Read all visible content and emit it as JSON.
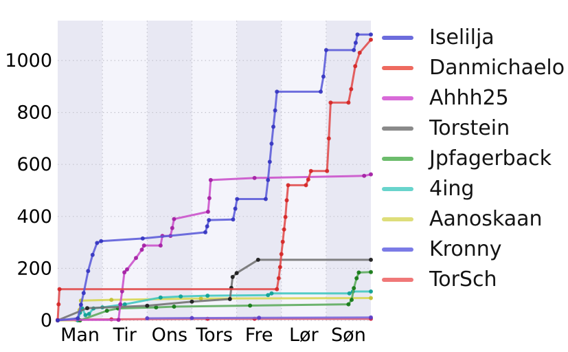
{
  "chart_data": {
    "type": "line",
    "title": "",
    "xlabel": "",
    "ylabel": "",
    "x_tick_labels": [
      "Man",
      "Tir",
      "Ons",
      "Tors",
      "Fre",
      "Lør",
      "Søn"
    ],
    "y_ticks": [
      0,
      200,
      400,
      600,
      800,
      1000
    ],
    "x_range_days": [
      0,
      7
    ],
    "y_range": [
      0,
      1153
    ],
    "grid": "dotted",
    "grid_color": "#c3c3cd",
    "band_color_dark": "#e8e8f3",
    "band_color_light": "#f4f4fb",
    "legend_position": "right-outside",
    "series": [
      {
        "name": "Iselilja",
        "line_color": "#5a5ad8",
        "marker_color": "#3434c0",
        "legend_color": "#6c6cdc",
        "points": [
          [
            0,
            0
          ],
          [
            0.45,
            8
          ],
          [
            0.52,
            60
          ],
          [
            0.58,
            105
          ],
          [
            0.68,
            190
          ],
          [
            0.78,
            252
          ],
          [
            0.88,
            298
          ],
          [
            0.97,
            305
          ],
          [
            1.9,
            315
          ],
          [
            3.3,
            339
          ],
          [
            3.34,
            362
          ],
          [
            3.38,
            386
          ],
          [
            3.92,
            388
          ],
          [
            3.97,
            430
          ],
          [
            4.01,
            467
          ],
          [
            4.65,
            467
          ],
          [
            4.7,
            540
          ],
          [
            4.74,
            610
          ],
          [
            4.78,
            680
          ],
          [
            4.82,
            745
          ],
          [
            4.86,
            808
          ],
          [
            4.9,
            880
          ],
          [
            5.88,
            880
          ],
          [
            5.94,
            938
          ],
          [
            6.0,
            1040
          ],
          [
            6.62,
            1040
          ],
          [
            6.66,
            1068
          ],
          [
            6.7,
            1100
          ],
          [
            7,
            1100
          ]
        ]
      },
      {
        "name": "Danmichaelo",
        "line_color": "#e04a4a",
        "marker_color": "#d42626",
        "legend_color": "#ee6a5f",
        "points": [
          [
            0,
            0
          ],
          [
            0.02,
            62
          ],
          [
            0.04,
            120
          ],
          [
            4.9,
            120
          ],
          [
            4.94,
            162
          ],
          [
            4.97,
            205
          ],
          [
            5.0,
            255
          ],
          [
            5.03,
            302
          ],
          [
            5.06,
            350
          ],
          [
            5.09,
            398
          ],
          [
            5.12,
            462
          ],
          [
            5.15,
            520
          ],
          [
            5.55,
            520
          ],
          [
            5.6,
            542
          ],
          [
            5.66,
            575
          ],
          [
            6.02,
            575
          ],
          [
            6.06,
            700
          ],
          [
            6.1,
            838
          ],
          [
            6.5,
            838
          ],
          [
            6.56,
            890
          ],
          [
            6.65,
            978
          ],
          [
            6.75,
            1030
          ],
          [
            7,
            1080
          ]
        ]
      },
      {
        "name": "Ahhh25",
        "line_color": "#c94fc9",
        "marker_color": "#a21ea2",
        "legend_color": "#d86ad8",
        "points": [
          [
            0,
            2
          ],
          [
            1.36,
            2
          ],
          [
            1.4,
            62
          ],
          [
            1.44,
            112
          ],
          [
            1.49,
            185
          ],
          [
            1.55,
            196
          ],
          [
            1.75,
            240
          ],
          [
            1.88,
            272
          ],
          [
            1.93,
            288
          ],
          [
            2.3,
            288
          ],
          [
            2.34,
            325
          ],
          [
            2.52,
            325
          ],
          [
            2.56,
            355
          ],
          [
            2.6,
            390
          ],
          [
            3.36,
            418
          ],
          [
            3.39,
            470
          ],
          [
            3.42,
            540
          ],
          [
            4.4,
            548
          ],
          [
            6.85,
            556
          ],
          [
            7,
            562
          ]
        ]
      },
      {
        "name": "Torstein",
        "line_color": "#6f6f6f",
        "marker_color": "#1a1a1a",
        "legend_color": "#8a8a8a",
        "points": [
          [
            0,
            0
          ],
          [
            0.66,
            47
          ],
          [
            2.0,
            56
          ],
          [
            3.0,
            72
          ],
          [
            3.85,
            82
          ],
          [
            3.88,
            125
          ],
          [
            3.91,
            167
          ],
          [
            4.0,
            182
          ],
          [
            4.48,
            233
          ],
          [
            7,
            233
          ]
        ]
      },
      {
        "name": "Jpfagerback",
        "line_color": "#5aaa5a",
        "marker_color": "#147814",
        "legend_color": "#6cbc6c",
        "points": [
          [
            0.5,
            0
          ],
          [
            1.1,
            37
          ],
          [
            1.35,
            46
          ],
          [
            2.2,
            50
          ],
          [
            2.6,
            53
          ],
          [
            4.3,
            57
          ],
          [
            6.5,
            62
          ],
          [
            6.57,
            79
          ],
          [
            6.62,
            124
          ],
          [
            6.68,
            162
          ],
          [
            6.73,
            184
          ],
          [
            7,
            186
          ]
        ]
      },
      {
        "name": "4ing",
        "line_color": "#3ec6be",
        "marker_color": "#0b9e92",
        "legend_color": "#68d4cc",
        "points": [
          [
            0.45,
            0
          ],
          [
            0.5,
            30
          ],
          [
            0.55,
            46
          ],
          [
            0.62,
            20
          ],
          [
            0.7,
            25
          ],
          [
            0.8,
            46
          ],
          [
            1.0,
            50
          ],
          [
            1.5,
            62
          ],
          [
            2.3,
            88
          ],
          [
            2.75,
            92
          ],
          [
            3.35,
            95
          ],
          [
            4.7,
            97
          ],
          [
            4.78,
            104
          ],
          [
            6.52,
            104
          ],
          [
            6.6,
            111
          ],
          [
            7,
            111
          ]
        ]
      },
      {
        "name": "Aanoskaan",
        "line_color": "#d6d650",
        "marker_color": "#c0c030",
        "legend_color": "#dede7a",
        "points": [
          [
            0,
            0
          ],
          [
            0.46,
            0
          ],
          [
            0.49,
            40
          ],
          [
            0.52,
            76
          ],
          [
            1.2,
            79
          ],
          [
            3.2,
            84
          ],
          [
            7,
            86
          ]
        ]
      },
      {
        "name": "Kronny",
        "line_color": "#7a68dc",
        "marker_color": "#5a3cc8",
        "legend_color": "#7b7be6",
        "points": [
          [
            2.0,
            8
          ],
          [
            3.0,
            9
          ],
          [
            4.5,
            10
          ],
          [
            7,
            11
          ]
        ]
      },
      {
        "name": "TorSch",
        "line_color": "#e0566a",
        "marker_color": "#cc2244",
        "legend_color": "#f07878",
        "points": [
          [
            0,
            0
          ],
          [
            0.4,
            3
          ],
          [
            1.2,
            4
          ],
          [
            3.35,
            6
          ],
          [
            4.4,
            6
          ],
          [
            7,
            6
          ]
        ]
      }
    ]
  }
}
